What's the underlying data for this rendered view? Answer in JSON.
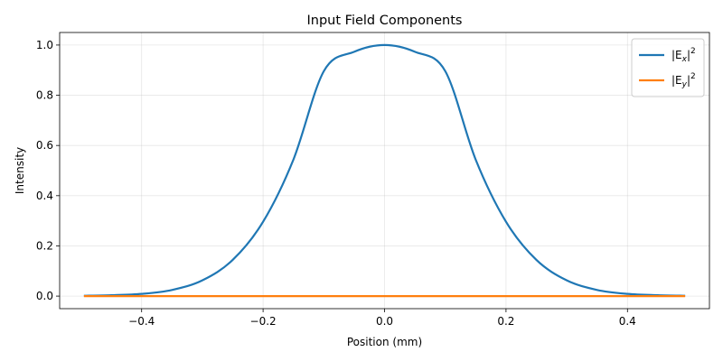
{
  "chart_data": {
    "type": "line",
    "title": "Input Field Components",
    "xlabel": "Position (mm)",
    "ylabel": "Intensity",
    "xlim": [
      -0.535,
      0.535
    ],
    "ylim": [
      -0.05,
      1.05
    ],
    "xticks": [
      -0.4,
      -0.2,
      0.0,
      0.2,
      0.4
    ],
    "xtick_labels": [
      "−0.4",
      "−0.2",
      "0.0",
      "0.2",
      "0.4"
    ],
    "yticks": [
      0.0,
      0.2,
      0.4,
      0.6,
      0.8,
      1.0
    ],
    "ytick_labels": [
      "0.0",
      "0.2",
      "0.4",
      "0.6",
      "0.8",
      "1.0"
    ],
    "grid": true,
    "legend_position": "top-right",
    "series": [
      {
        "name": "|Ex|²",
        "name_base": "|E",
        "name_sub": "x",
        "name_close": "|",
        "name_sup": "2",
        "color": "#1f77b4",
        "x": [
          -0.495,
          -0.45,
          -0.4,
          -0.35,
          -0.3,
          -0.25,
          -0.2,
          -0.15,
          -0.1,
          -0.05,
          0.0,
          0.05,
          0.1,
          0.15,
          0.2,
          0.25,
          0.3,
          0.35,
          0.4,
          0.45,
          0.495
        ],
        "y": [
          0.0012,
          0.0035,
          0.0088,
          0.0245,
          0.0628,
          0.1442,
          0.2962,
          0.5441,
          0.8959,
          0.973,
          1.0,
          0.973,
          0.8959,
          0.5441,
          0.2962,
          0.1442,
          0.0628,
          0.0245,
          0.0088,
          0.0035,
          0.0012
        ]
      },
      {
        "name": "|Ey|²",
        "name_base": "|E",
        "name_sub": "y",
        "name_close": "|",
        "name_sup": "2",
        "color": "#ff7f0e",
        "x": [
          -0.495,
          0.495
        ],
        "y": [
          0.0,
          0.0
        ]
      }
    ]
  }
}
